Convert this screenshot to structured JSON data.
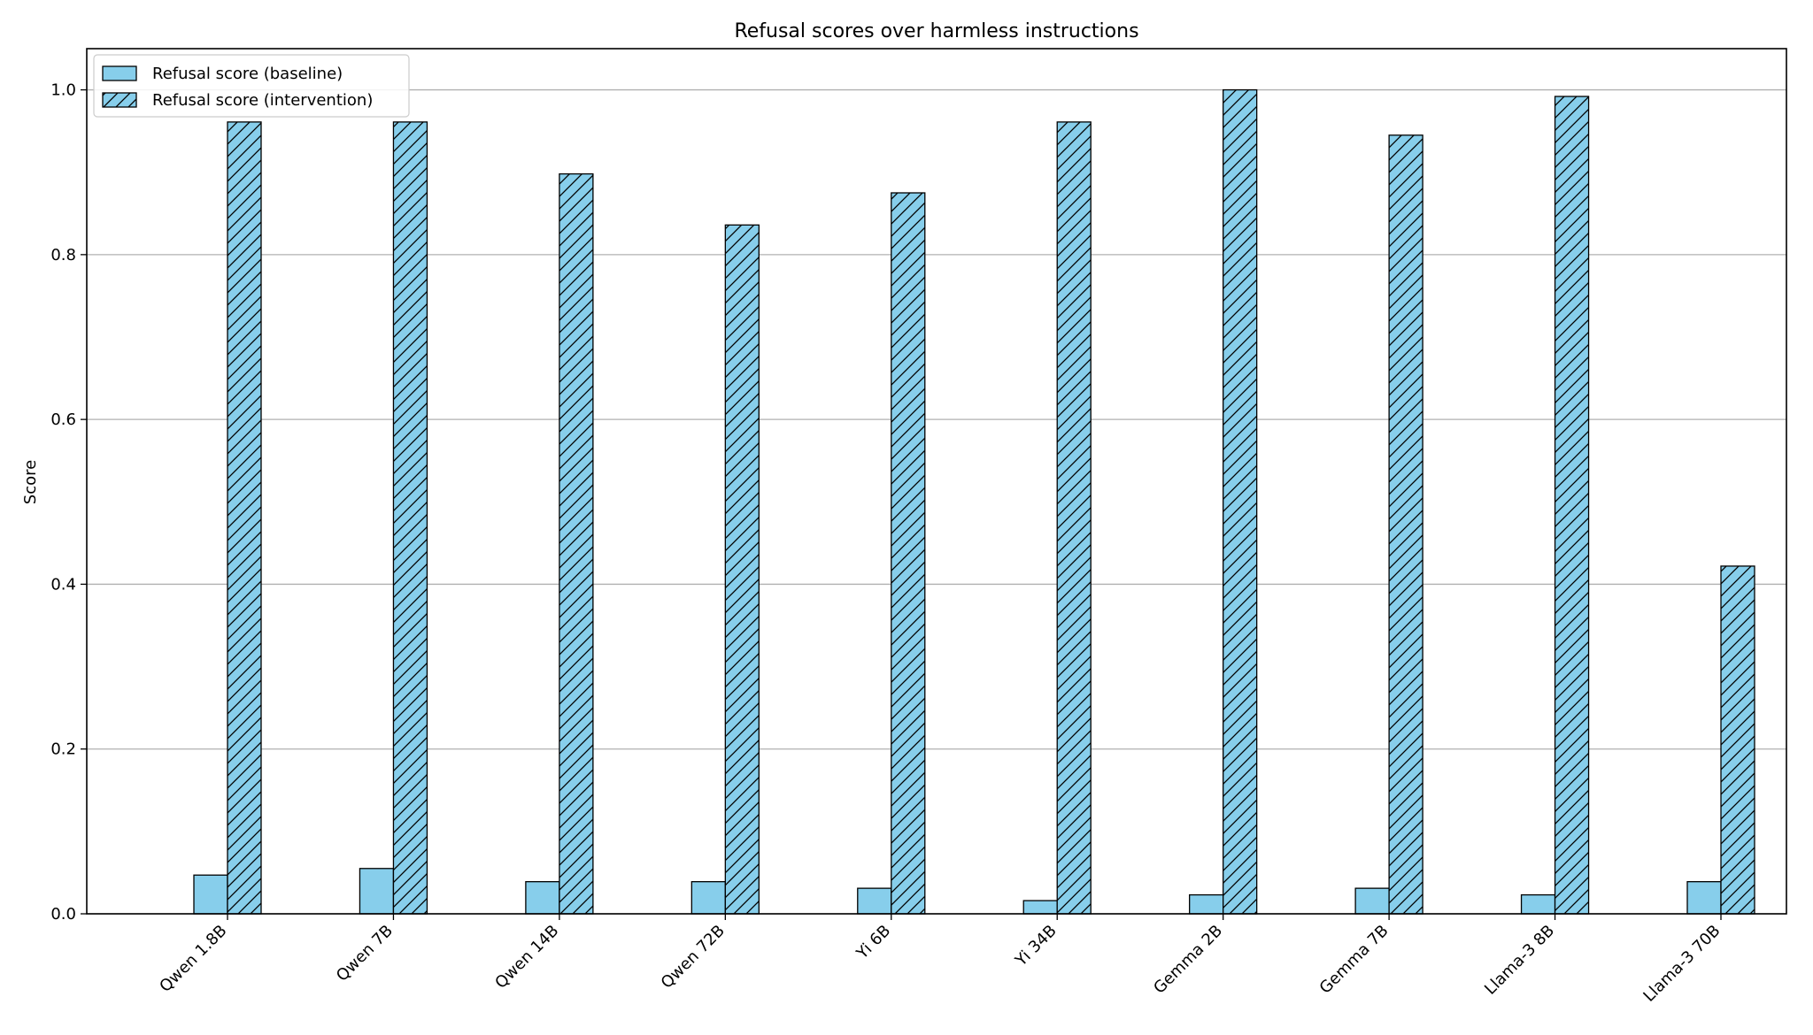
{
  "chart_data": {
    "type": "bar",
    "title": "Refusal scores over harmless instructions",
    "xlabel": "",
    "ylabel": "Score",
    "ylim": [
      0,
      1.05
    ],
    "yticks": [
      "0.0",
      "0.2",
      "0.4",
      "0.6",
      "0.8",
      "1.0"
    ],
    "grid": "y",
    "legend_placement": "top-left",
    "categories": [
      "Qwen 1.8B",
      "Qwen 7B",
      "Qwen 14B",
      "Qwen 72B",
      "Yi 6B",
      "Yi 34B",
      "Gemma 2B",
      "Gemma 7B",
      "Llama-3 8B",
      "Llama-3 70B"
    ],
    "series": [
      {
        "name": "Refusal score (baseline)",
        "color": "#87ceeb",
        "hatch": "none",
        "values": [
          0.047,
          0.055,
          0.039,
          0.039,
          0.031,
          0.016,
          0.023,
          0.031,
          0.023,
          0.039
        ]
      },
      {
        "name": "Refusal score (intervention)",
        "color": "#87ceeb",
        "hatch": "diagonal",
        "values": [
          0.961,
          0.961,
          0.898,
          0.836,
          0.875,
          0.961,
          1.0,
          0.945,
          0.992,
          0.422
        ]
      }
    ]
  }
}
